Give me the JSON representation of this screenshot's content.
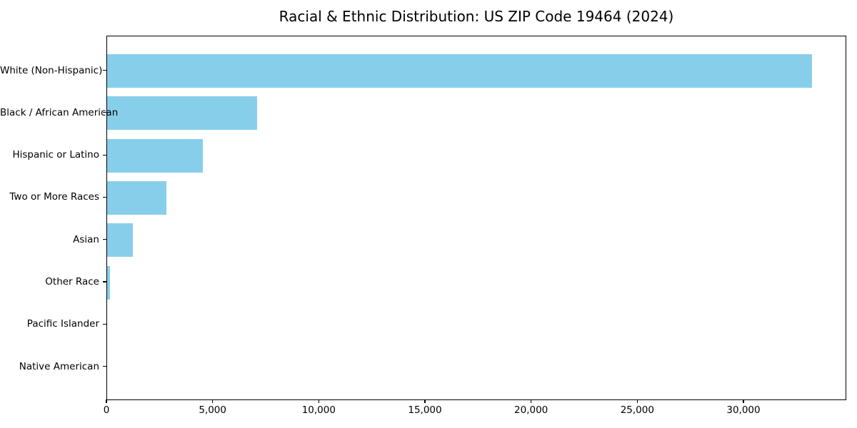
{
  "title": "Racial & Ethnic Distribution: US ZIP Code 19464 (2024)",
  "colors": {
    "bar": "#87CEEB",
    "axis": "#000000",
    "background": "#FFFFFF",
    "text": "#000000"
  },
  "chart_data": {
    "type": "bar",
    "orientation": "horizontal",
    "title": "Racial & Ethnic Distribution: US ZIP Code 19464 (2024)",
    "categories": [
      "White (Non-Hispanic)",
      "Black / African American",
      "Hispanic or Latino",
      "Two or More Races",
      "Asian",
      "Other Race",
      "Pacific Islander",
      "Native American"
    ],
    "values": [
      33180,
      7060,
      4510,
      2790,
      1210,
      150,
      0,
      0
    ],
    "xlabel": "",
    "ylabel": "",
    "xlim": [
      0,
      34843
    ],
    "xticks": [
      0,
      5000,
      10000,
      15000,
      20000,
      25000,
      30000
    ],
    "xtick_labels": [
      "0",
      "5,000",
      "10,000",
      "15,000",
      "20,000",
      "25,000",
      "30,000"
    ],
    "grid": false,
    "legend": null,
    "bar_color": "#87CEEB"
  }
}
